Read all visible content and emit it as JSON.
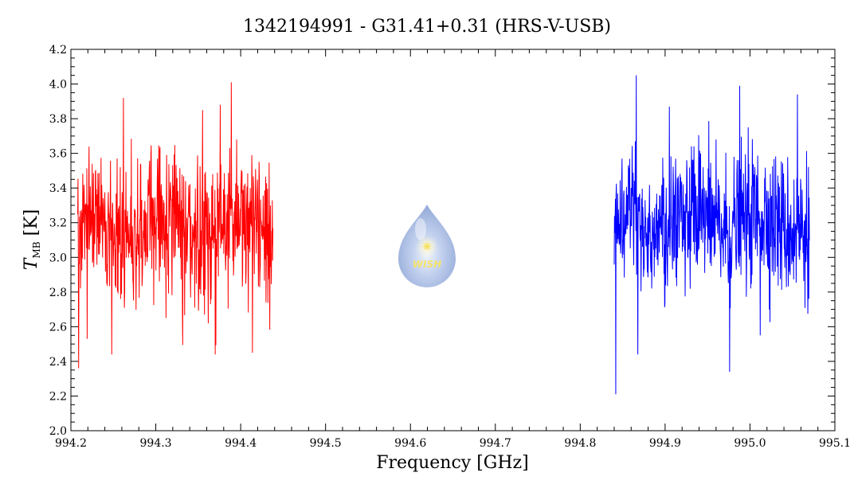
{
  "chart_data": {
    "type": "line",
    "title": "1342194991 - G31.41+0.31 (HRS-V-USB)",
    "xlabel": "Frequency [GHz]",
    "ylabel_symbol": "T",
    "ylabel_sub": "MB",
    "ylabel_unit": "[K]",
    "xlim": [
      994.2,
      995.1
    ],
    "ylim": [
      2.0,
      4.2
    ],
    "xticks": [
      "994.2",
      "994.3",
      "994.4",
      "994.5",
      "994.6",
      "994.7",
      "994.8",
      "994.9",
      "995.0",
      "995.1"
    ],
    "yticks": [
      "2.0",
      "2.2",
      "2.4",
      "2.6",
      "2.8",
      "3.0",
      "3.2",
      "3.4",
      "3.6",
      "3.8",
      "4.0",
      "4.2"
    ],
    "grid": false,
    "series": [
      {
        "color": "#ff0000",
        "x_range": [
          994.208,
          994.438
        ],
        "mean": 3.18,
        "envelope_low": 2.8,
        "envelope_high": 3.6,
        "min": 2.36,
        "max": 4.01,
        "peaks": [
          {
            "x": 994.262,
            "y": 3.92
          },
          {
            "x": 994.376,
            "y": 3.88
          },
          {
            "x": 994.389,
            "y": 4.01
          },
          {
            "x": 994.355,
            "y": 3.85
          }
        ],
        "troughs": [
          {
            "x": 994.209,
            "y": 2.36
          },
          {
            "x": 994.219,
            "y": 2.53
          },
          {
            "x": 994.248,
            "y": 2.44
          },
          {
            "x": 994.37,
            "y": 2.44
          },
          {
            "x": 994.414,
            "y": 2.45
          }
        ]
      },
      {
        "color": "#0000ff",
        "x_range": [
          994.84,
          995.07
        ],
        "mean": 3.2,
        "envelope_low": 2.8,
        "envelope_high": 3.6,
        "min": 2.21,
        "max": 4.05,
        "peaks": [
          {
            "x": 994.866,
            "y": 4.05
          },
          {
            "x": 994.988,
            "y": 3.99
          },
          {
            "x": 994.905,
            "y": 3.87
          },
          {
            "x": 995.056,
            "y": 3.94
          }
        ],
        "troughs": [
          {
            "x": 994.842,
            "y": 2.21
          },
          {
            "x": 994.868,
            "y": 2.44
          },
          {
            "x": 994.976,
            "y": 2.34
          },
          {
            "x": 995.012,
            "y": 2.55
          }
        ]
      }
    ]
  },
  "logo": {
    "text": "WISH",
    "colors": {
      "drop": "#8fa9dc",
      "star": "#f4e36a"
    }
  }
}
